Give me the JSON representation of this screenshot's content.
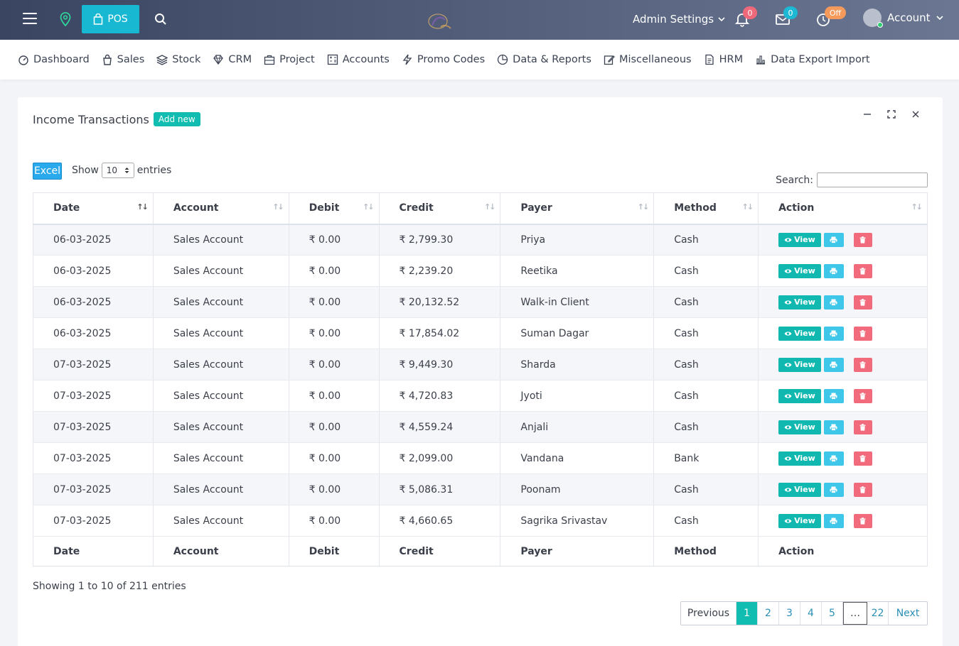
{
  "topbar": {
    "pos_label": "POS",
    "admin_settings": "Admin Settings",
    "notifications_count": "0",
    "messages_count": "0",
    "clock_badge": "Off",
    "account_label": "Account"
  },
  "menu": [
    {
      "label": "Dashboard",
      "icon": "gauge-icon"
    },
    {
      "label": "Sales",
      "icon": "shopping-bag-icon"
    },
    {
      "label": "Stock",
      "icon": "layers-icon"
    },
    {
      "label": "CRM",
      "icon": "diamond-icon"
    },
    {
      "label": "Project",
      "icon": "briefcase-icon"
    },
    {
      "label": "Accounts",
      "icon": "calculator-icon"
    },
    {
      "label": "Promo Codes",
      "icon": "bolt-icon"
    },
    {
      "label": "Data & Reports",
      "icon": "pie-icon"
    },
    {
      "label": "Miscellaneous",
      "icon": "edit-icon"
    },
    {
      "label": "HRM",
      "icon": "document-icon"
    },
    {
      "label": "Data Export Import",
      "icon": "bar-chart-icon"
    }
  ],
  "card": {
    "title": "Income Transactions",
    "add_new": "Add new"
  },
  "controls": {
    "excel": "Excel",
    "show": "Show",
    "page_length": "10",
    "entries": "entries",
    "search_label": "Search:"
  },
  "table": {
    "columns": [
      "Date",
      "Account",
      "Debit",
      "Credit",
      "Payer",
      "Method",
      "Action"
    ],
    "view_label": "View",
    "rows": [
      {
        "date": "06-03-2025",
        "account": "Sales Account",
        "debit": "₹ 0.00",
        "credit": "₹ 2,799.30",
        "payer": "Priya",
        "method": "Cash"
      },
      {
        "date": "06-03-2025",
        "account": "Sales Account",
        "debit": "₹ 0.00",
        "credit": "₹ 2,239.20",
        "payer": "Reetika",
        "method": "Cash"
      },
      {
        "date": "06-03-2025",
        "account": "Sales Account",
        "debit": "₹ 0.00",
        "credit": "₹ 20,132.52",
        "payer": "Walk-in Client",
        "method": "Cash"
      },
      {
        "date": "06-03-2025",
        "account": "Sales Account",
        "debit": "₹ 0.00",
        "credit": "₹ 17,854.02",
        "payer": "Suman Dagar",
        "method": "Cash"
      },
      {
        "date": "07-03-2025",
        "account": "Sales Account",
        "debit": "₹ 0.00",
        "credit": "₹ 9,449.30",
        "payer": "Sharda",
        "method": "Cash"
      },
      {
        "date": "07-03-2025",
        "account": "Sales Account",
        "debit": "₹ 0.00",
        "credit": "₹ 4,720.83",
        "payer": "Jyoti",
        "method": "Cash"
      },
      {
        "date": "07-03-2025",
        "account": "Sales Account",
        "debit": "₹ 0.00",
        "credit": "₹ 4,559.24",
        "payer": "Anjali",
        "method": "Cash"
      },
      {
        "date": "07-03-2025",
        "account": "Sales Account",
        "debit": "₹ 0.00",
        "credit": "₹ 2,099.00",
        "payer": "Vandana",
        "method": "Bank"
      },
      {
        "date": "07-03-2025",
        "account": "Sales Account",
        "debit": "₹ 0.00",
        "credit": "₹ 5,086.31",
        "payer": "Poonam",
        "method": "Cash"
      },
      {
        "date": "07-03-2025",
        "account": "Sales Account",
        "debit": "₹ 0.00",
        "credit": "₹ 4,660.65",
        "payer": "Sagrika Srivastav",
        "method": "Cash"
      }
    ]
  },
  "footer": {
    "info": "Showing 1 to 10 of 211 entries",
    "pagination": [
      "Previous",
      "1",
      "2",
      "3",
      "4",
      "5",
      "…",
      "22",
      "Next"
    ]
  }
}
